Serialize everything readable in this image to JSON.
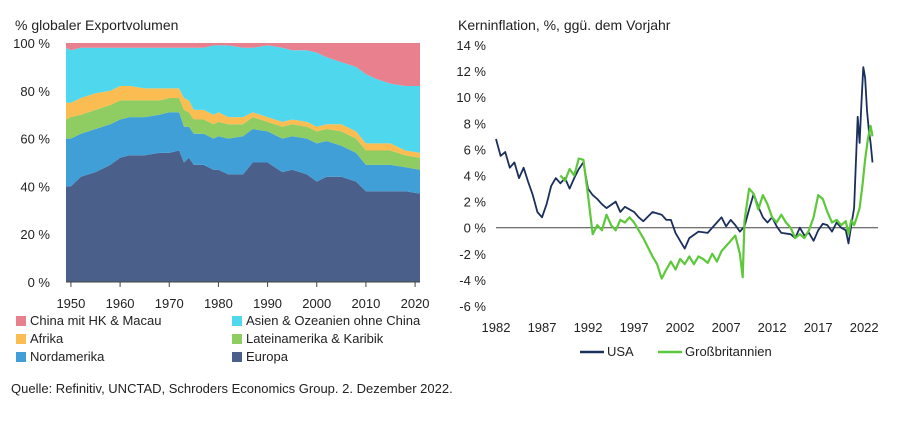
{
  "chart_data": [
    {
      "type": "area",
      "stacked": true,
      "percent": true,
      "title": "% globaler Exportvolumen",
      "xlim": [
        1949,
        2021
      ],
      "ylim": [
        0,
        100
      ],
      "x_ticks": [
        "1950",
        "1960",
        "1970",
        "1980",
        "1990",
        "2000",
        "2010",
        "2020"
      ],
      "y_ticks": [
        "0 %",
        "20 %",
        "40 %",
        "60 %",
        "80 %",
        "100 %"
      ],
      "x": [
        1949,
        1950,
        1952,
        1955,
        1958,
        1960,
        1962,
        1965,
        1968,
        1970,
        1972,
        1973,
        1974,
        1975,
        1977,
        1979,
        1980,
        1982,
        1985,
        1987,
        1990,
        1993,
        1995,
        1998,
        2000,
        2002,
        2005,
        2008,
        2010,
        2012,
        2015,
        2018,
        2021
      ],
      "legend_columns": 2,
      "legend": [
        {
          "name": "China mit HK & Macau",
          "color": "#e9808d"
        },
        {
          "name": "Asien & Ozeanien ohne China",
          "color": "#4fd7ee"
        },
        {
          "name": "Afrika",
          "color": "#fbbd52"
        },
        {
          "name": "Lateinamerika & Karibik",
          "color": "#8fcc62"
        },
        {
          "name": "Nordamerika",
          "color": "#3f9fd6"
        },
        {
          "name": "Europa",
          "color": "#4a5f8a"
        }
      ],
      "series": [
        {
          "name": "Europa",
          "color": "#4a5f8a",
          "values": [
            40,
            40,
            44,
            46,
            49,
            52,
            53,
            53,
            54,
            54,
            55,
            50,
            52,
            49,
            49,
            47,
            47,
            45,
            45,
            50,
            50,
            46,
            47,
            45,
            42,
            44,
            44,
            42,
            38,
            38,
            38,
            38,
            37
          ]
        },
        {
          "name": "Nordamerika",
          "color": "#3f9fd6",
          "values": [
            20,
            20,
            18,
            18,
            17,
            16,
            16,
            16,
            16,
            17,
            16,
            15,
            13,
            13,
            13,
            13,
            14,
            15,
            16,
            14,
            13,
            14,
            14,
            15,
            16,
            15,
            13,
            12,
            11,
            11,
            11,
            10,
            10
          ]
        },
        {
          "name": "Lateinamerika & Karibik",
          "color": "#8fcc62",
          "values": [
            8,
            9,
            8,
            8,
            8,
            8,
            7,
            7,
            6,
            6,
            6,
            7,
            6,
            6,
            6,
            6,
            6,
            6,
            5,
            5,
            4,
            5,
            5,
            5,
            5,
            5,
            6,
            6,
            6,
            6,
            6,
            5,
            5
          ]
        },
        {
          "name": "Afrika",
          "color": "#fbbd52",
          "values": [
            7,
            6,
            7,
            7,
            6,
            6,
            6,
            5,
            5,
            4,
            4,
            5,
            5,
            4,
            4,
            4,
            4,
            3,
            3,
            2,
            2,
            2,
            2,
            2,
            2,
            2,
            3,
            3,
            3,
            3,
            3,
            2,
            2
          ]
        },
        {
          "name": "Asien & Ozeanien ohne China",
          "color": "#4fd7ee",
          "values": [
            23,
            22,
            21,
            19,
            18,
            16,
            16,
            17,
            17,
            17,
            17,
            21,
            22,
            26,
            26,
            29,
            28,
            30,
            29,
            27,
            30,
            31,
            29,
            30,
            31,
            28,
            26,
            27,
            29,
            27,
            25,
            27,
            28
          ]
        },
        {
          "name": "China mit HK & Macau",
          "color": "#e9808d",
          "values": [
            2,
            3,
            2,
            2,
            2,
            2,
            2,
            2,
            2,
            2,
            2,
            2,
            2,
            2,
            2,
            1,
            1,
            1,
            2,
            2,
            1,
            2,
            3,
            3,
            4,
            6,
            8,
            10,
            13,
            15,
            17,
            18,
            18
          ]
        }
      ]
    },
    {
      "type": "line",
      "title": "Kerninflation, %, ggü. dem Vorjahr",
      "xlim": [
        1982,
        2023.5
      ],
      "ylim": [
        -6,
        14
      ],
      "x_ticks": [
        "1982",
        "1987",
        "1992",
        "1997",
        "2002",
        "2007",
        "2012",
        "2017",
        "2022"
      ],
      "y_ticks": [
        "-6 %",
        "-4 %",
        "-2 %",
        "0 %",
        "2 %",
        "4 %",
        "6 %",
        "8 %",
        "10 %",
        "12 %",
        "14 %"
      ],
      "legend": [
        {
          "name": "USA",
          "color": "#1b2f5c"
        },
        {
          "name": "Großbritannien",
          "color": "#5cc83a"
        }
      ],
      "series": [
        {
          "name": "USA",
          "color": "#1b2f5c",
          "points": [
            [
              1982,
              6.8
            ],
            [
              1982.5,
              5.5
            ],
            [
              1983,
              5.8
            ],
            [
              1983.5,
              4.6
            ],
            [
              1984,
              5.0
            ],
            [
              1984.5,
              3.8
            ],
            [
              1985,
              4.6
            ],
            [
              1985.5,
              3.5
            ],
            [
              1986,
              2.5
            ],
            [
              1986.5,
              1.2
            ],
            [
              1987,
              0.8
            ],
            [
              1987.5,
              1.8
            ],
            [
              1988,
              3.2
            ],
            [
              1988.5,
              3.8
            ],
            [
              1989,
              3.4
            ],
            [
              1989.5,
              3.8
            ],
            [
              1990,
              3.0
            ],
            [
              1990.5,
              3.8
            ],
            [
              1991,
              4.5
            ],
            [
              1991.5,
              5.0
            ],
            [
              1992,
              3.0
            ],
            [
              1992.5,
              2.5
            ],
            [
              1993,
              2.2
            ],
            [
              1993.5,
              1.8
            ],
            [
              1994,
              1.5
            ],
            [
              1995,
              2.0
            ],
            [
              1995.5,
              1.2
            ],
            [
              1996,
              1.6
            ],
            [
              1997,
              1.2
            ],
            [
              1997.5,
              0.8
            ],
            [
              1998,
              0.5
            ],
            [
              1999,
              1.2
            ],
            [
              2000,
              1.0
            ],
            [
              2000.5,
              0.6
            ],
            [
              2001,
              0.6
            ],
            [
              2001.5,
              -0.4
            ],
            [
              2002,
              -1.0
            ],
            [
              2002.5,
              -1.6
            ],
            [
              2003,
              -0.8
            ],
            [
              2004,
              -0.3
            ],
            [
              2005,
              -0.4
            ],
            [
              2006,
              0.4
            ],
            [
              2006.5,
              0.8
            ],
            [
              2007,
              0.1
            ],
            [
              2007.5,
              0.6
            ],
            [
              2008,
              0.2
            ],
            [
              2008.5,
              -0.3
            ],
            [
              2009,
              0.1
            ],
            [
              2009.5,
              1.4
            ],
            [
              2010,
              2.6
            ],
            [
              2010.5,
              1.6
            ],
            [
              2011,
              0.8
            ],
            [
              2011.5,
              0.4
            ],
            [
              2012,
              0.8
            ],
            [
              2012.5,
              0.1
            ],
            [
              2013,
              -0.4
            ],
            [
              2014,
              -0.5
            ],
            [
              2014.5,
              -0.8
            ],
            [
              2015,
              0.0
            ],
            [
              2015.5,
              -0.6
            ],
            [
              2016,
              -0.4
            ],
            [
              2016.5,
              -1.0
            ],
            [
              2017,
              -0.2
            ],
            [
              2017.5,
              0.3
            ],
            [
              2018,
              0.2
            ],
            [
              2018.5,
              -0.3
            ],
            [
              2019,
              0.4
            ],
            [
              2019.5,
              0.0
            ],
            [
              2020,
              -0.2
            ],
            [
              2020.3,
              -1.2
            ],
            [
              2020.6,
              0.2
            ],
            [
              2020.9,
              1.5
            ],
            [
              2021.1,
              5.0
            ],
            [
              2021.3,
              8.5
            ],
            [
              2021.5,
              6.5
            ],
            [
              2021.7,
              9.5
            ],
            [
              2021.9,
              12.3
            ],
            [
              2022.1,
              11.5
            ],
            [
              2022.3,
              9.0
            ],
            [
              2022.5,
              7.5
            ],
            [
              2022.7,
              6.5
            ],
            [
              2022.9,
              5.0
            ]
          ]
        },
        {
          "name": "Großbritannien",
          "color": "#5cc83a",
          "points": [
            [
              1989,
              4.0
            ],
            [
              1989.5,
              3.6
            ],
            [
              1990,
              4.5
            ],
            [
              1990.5,
              4.0
            ],
            [
              1991,
              5.3
            ],
            [
              1991.5,
              5.2
            ],
            [
              1992,
              2.5
            ],
            [
              1992.5,
              -0.5
            ],
            [
              1993,
              0.2
            ],
            [
              1993.5,
              -0.2
            ],
            [
              1994,
              1.0
            ],
            [
              1994.5,
              0.2
            ],
            [
              1995,
              -0.2
            ],
            [
              1995.5,
              0.6
            ],
            [
              1996,
              0.4
            ],
            [
              1996.5,
              0.8
            ],
            [
              1997,
              0.4
            ],
            [
              1997.5,
              -0.2
            ],
            [
              1998,
              -0.8
            ],
            [
              1998.5,
              -1.5
            ],
            [
              1999,
              -2.2
            ],
            [
              1999.5,
              -2.8
            ],
            [
              2000,
              -3.9
            ],
            [
              2000.5,
              -3.2
            ],
            [
              2001,
              -2.6
            ],
            [
              2001.5,
              -3.2
            ],
            [
              2002,
              -2.4
            ],
            [
              2002.5,
              -2.8
            ],
            [
              2003,
              -2.2
            ],
            [
              2003.5,
              -2.8
            ],
            [
              2004,
              -2.2
            ],
            [
              2004.5,
              -2.4
            ],
            [
              2005,
              -2.7
            ],
            [
              2005.5,
              -2.0
            ],
            [
              2006,
              -2.6
            ],
            [
              2006.5,
              -1.8
            ],
            [
              2007,
              -1.4
            ],
            [
              2007.5,
              -1.0
            ],
            [
              2008,
              -0.6
            ],
            [
              2008.5,
              -2.0
            ],
            [
              2008.8,
              -3.8
            ],
            [
              2009,
              0.5
            ],
            [
              2009.5,
              3.0
            ],
            [
              2010,
              2.6
            ],
            [
              2010.5,
              1.4
            ],
            [
              2011,
              2.5
            ],
            [
              2011.5,
              1.8
            ],
            [
              2012,
              0.8
            ],
            [
              2012.5,
              0.4
            ],
            [
              2013,
              1.0
            ],
            [
              2013.5,
              0.4
            ],
            [
              2014,
              0.0
            ],
            [
              2014.5,
              -0.8
            ],
            [
              2015,
              -0.5
            ],
            [
              2015.5,
              -0.8
            ],
            [
              2016,
              -0.2
            ],
            [
              2016.5,
              0.8
            ],
            [
              2017,
              2.5
            ],
            [
              2017.5,
              2.2
            ],
            [
              2018,
              1.2
            ],
            [
              2018.5,
              0.4
            ],
            [
              2019,
              0.6
            ],
            [
              2019.5,
              0.2
            ],
            [
              2020,
              0.5
            ],
            [
              2020.3,
              -0.5
            ],
            [
              2020.6,
              0.6
            ],
            [
              2020.9,
              0.2
            ],
            [
              2021.2,
              0.8
            ],
            [
              2021.5,
              1.5
            ],
            [
              2021.8,
              3.2
            ],
            [
              2022.1,
              5.2
            ],
            [
              2022.4,
              6.8
            ],
            [
              2022.7,
              7.8
            ],
            [
              2022.9,
              7.0
            ]
          ]
        }
      ]
    }
  ],
  "footer": {
    "source": "Quelle: Refinitiv, UNCTAD, Schroders Economics Group. 2. Dezember 2022."
  }
}
